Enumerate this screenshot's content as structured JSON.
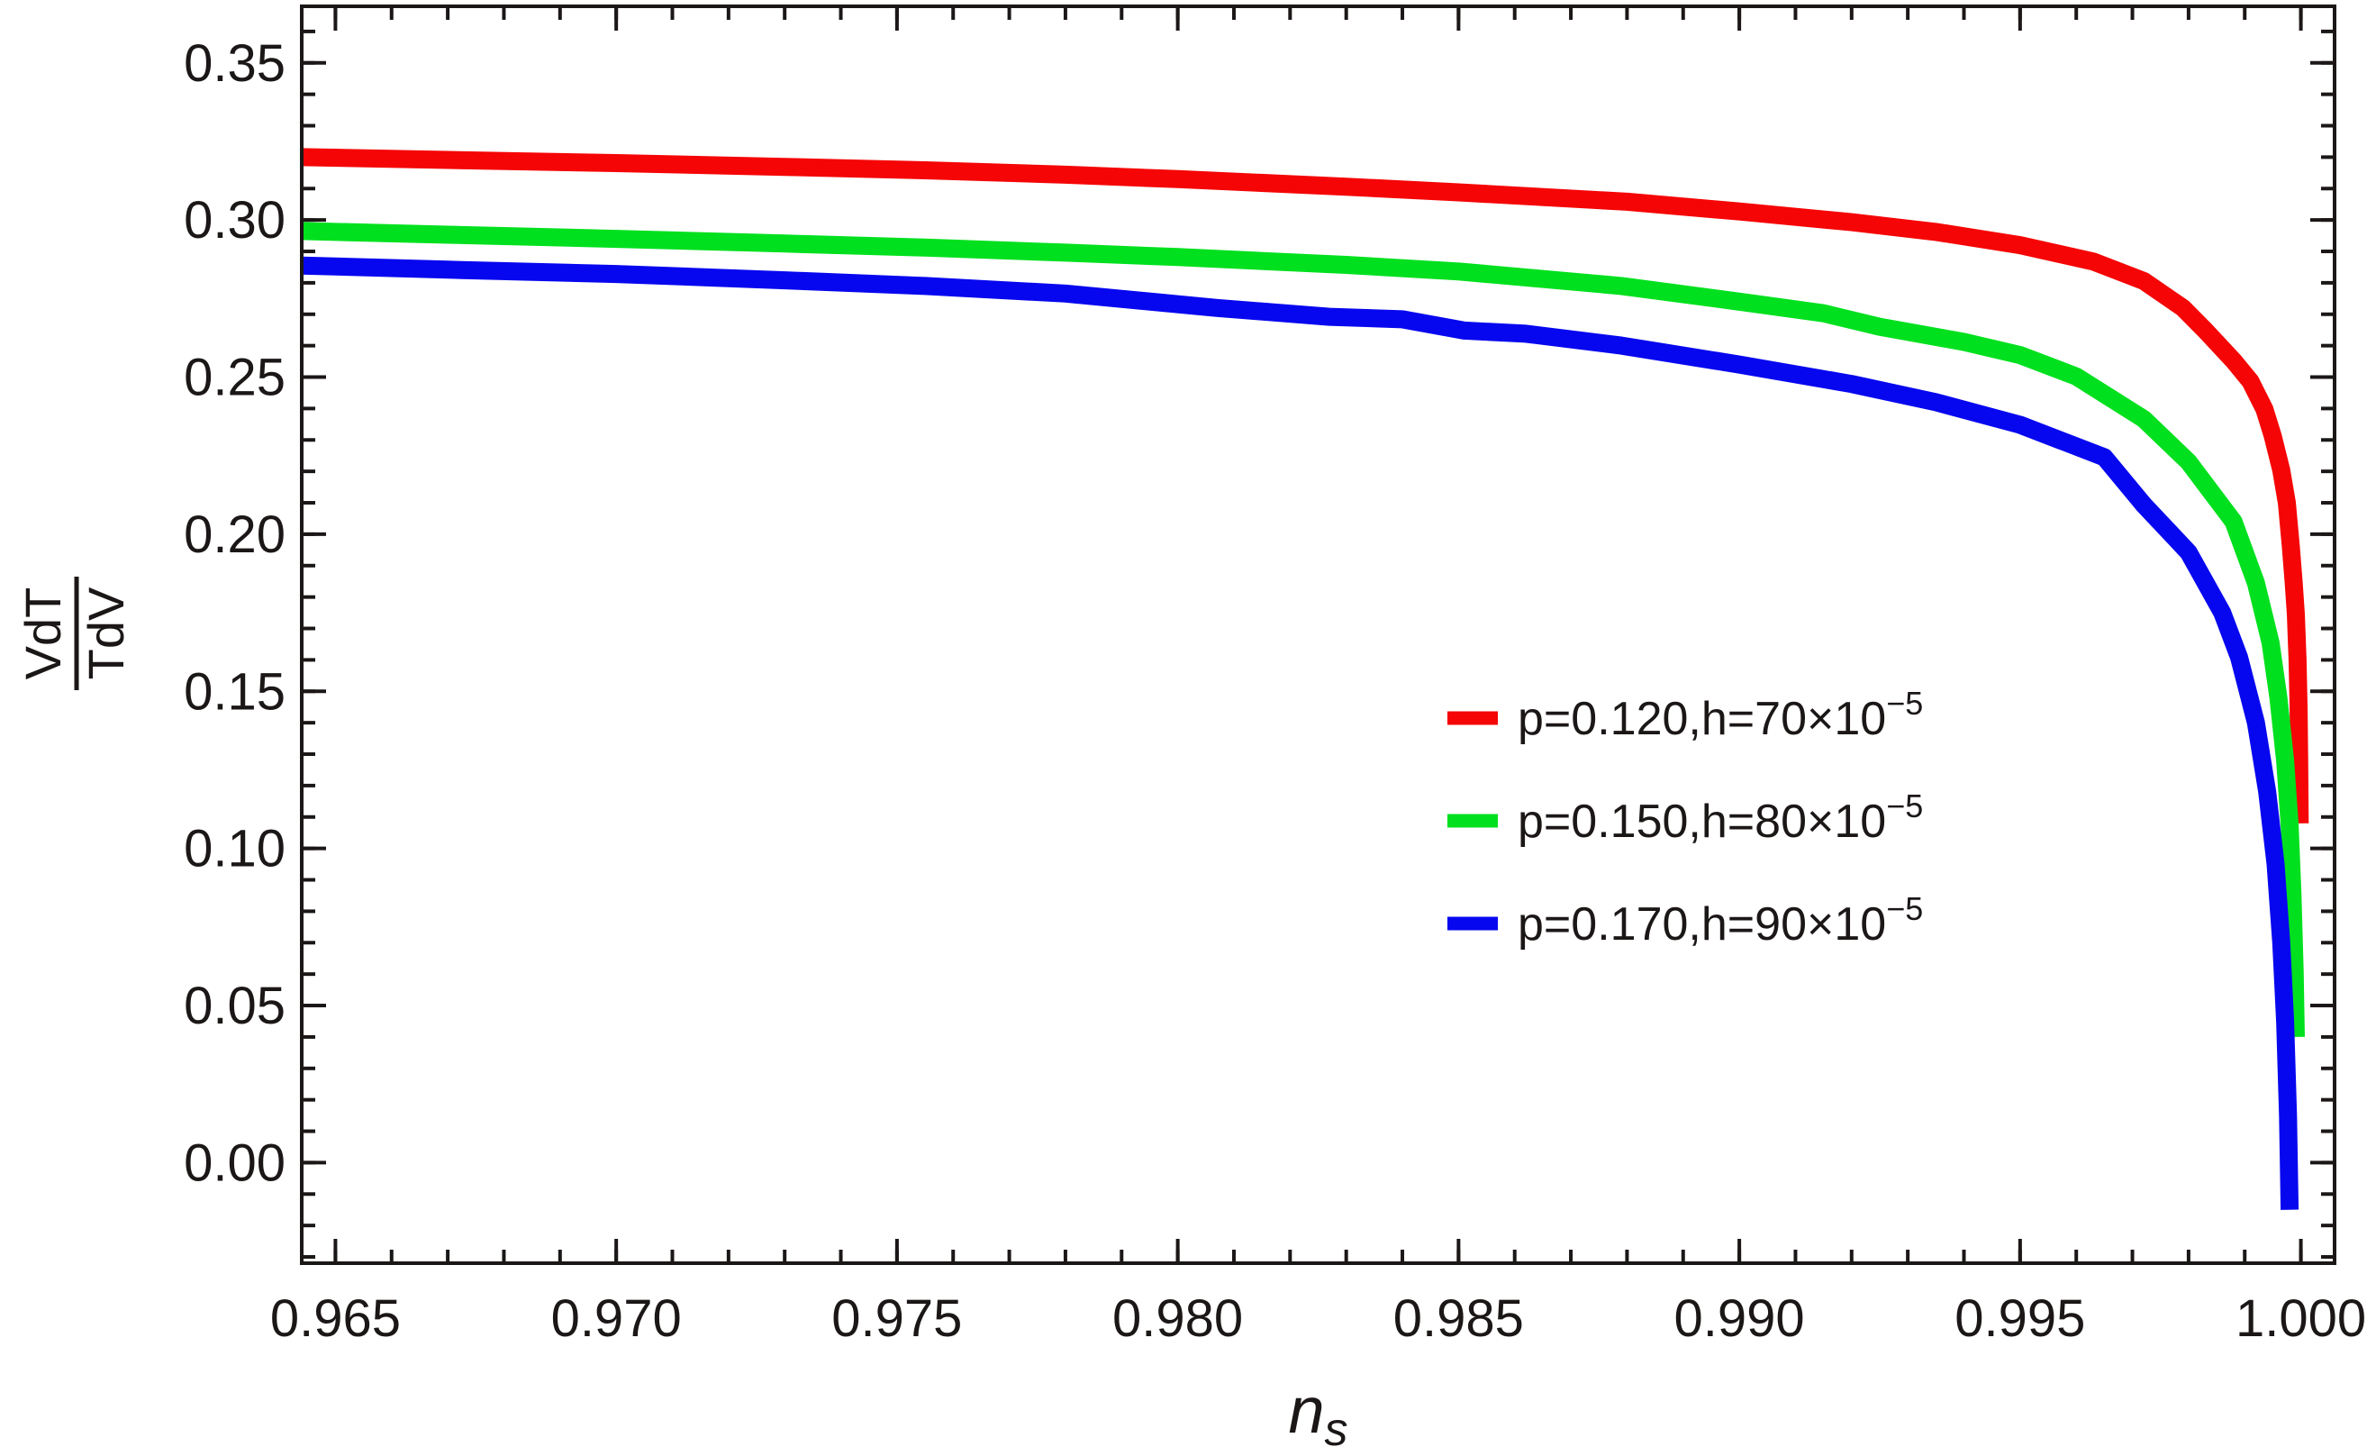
{
  "figure": {
    "background": "#ffffff",
    "text_color": "#1c1717"
  },
  "chart_data": {
    "type": "line",
    "title": "",
    "xlabel": {
      "base": "n",
      "sub": "s"
    },
    "ylabel": {
      "numerator": "VdT",
      "denominator": "TdV"
    },
    "xlim": [
      0.9644,
      1.0006
    ],
    "ylim": [
      -0.032,
      0.368
    ],
    "grid": false,
    "frame": true,
    "axis_color": "#1c1717",
    "x_ticks": {
      "major": [
        0.965,
        0.97,
        0.975,
        0.98,
        0.985,
        0.99,
        0.995,
        1.0
      ],
      "labels": [
        "0.965",
        "0.970",
        "0.975",
        "0.980",
        "0.985",
        "0.990",
        "0.995",
        "1.000"
      ],
      "minor_step": 0.001
    },
    "y_ticks": {
      "major": [
        0.0,
        0.05,
        0.1,
        0.15,
        0.2,
        0.25,
        0.3,
        0.35
      ],
      "labels": [
        "0.00",
        "0.05",
        "0.10",
        "0.15",
        "0.20",
        "0.25",
        "0.30",
        "0.35"
      ],
      "minor_step": 0.01
    },
    "legend": {
      "position": "inside-right-middle",
      "items": [
        {
          "name": "p=0.120,h=70×10⁻⁵",
          "label_base": "p=0.120,h=70×10",
          "label_sup": "−5",
          "color": "#f50505"
        },
        {
          "name": "p=0.150,h=80×10⁻⁵",
          "label_base": "p=0.150,h=80×10",
          "label_sup": "−5",
          "color": "#00e01e"
        },
        {
          "name": "p=0.170,h=90×10⁻⁵",
          "label_base": "p=0.170,h=90×10",
          "label_sup": "−5",
          "color": "#0707ef"
        }
      ]
    },
    "series": [
      {
        "name": "p=0.120,h=70×10⁻⁵",
        "color": "#f50505",
        "points": [
          [
            0.9644,
            0.32
          ],
          [
            0.967,
            0.3191
          ],
          [
            0.97,
            0.3181
          ],
          [
            0.973,
            0.3169
          ],
          [
            0.9755,
            0.3158
          ],
          [
            0.978,
            0.3144
          ],
          [
            0.98,
            0.313
          ],
          [
            0.983,
            0.3106
          ],
          [
            0.985,
            0.3088
          ],
          [
            0.988,
            0.3058
          ],
          [
            0.99,
            0.3027
          ],
          [
            0.992,
            0.2993
          ],
          [
            0.9935,
            0.2962
          ],
          [
            0.995,
            0.292
          ],
          [
            0.9963,
            0.2868
          ],
          [
            0.9972,
            0.2806
          ],
          [
            0.9979,
            0.272
          ],
          [
            0.9983,
            0.2648
          ],
          [
            0.9988,
            0.2552
          ],
          [
            0.9991,
            0.2487
          ],
          [
            0.99935,
            0.2398
          ],
          [
            0.9995,
            0.2312
          ],
          [
            0.99965,
            0.2204
          ],
          [
            0.99975,
            0.21
          ],
          [
            0.99982,
            0.1962
          ],
          [
            0.99987,
            0.185
          ],
          [
            0.99991,
            0.1746
          ],
          [
            0.99994,
            0.16
          ],
          [
            0.99996,
            0.1442
          ],
          [
            0.99997,
            0.1285
          ],
          [
            0.99998,
            0.108
          ]
        ]
      },
      {
        "name": "p=0.150,h=80×10⁻⁵",
        "color": "#00e01e",
        "points": [
          [
            0.9644,
            0.2965
          ],
          [
            0.967,
            0.2953
          ],
          [
            0.97,
            0.294
          ],
          [
            0.973,
            0.2925
          ],
          [
            0.9755,
            0.2912
          ],
          [
            0.978,
            0.2896
          ],
          [
            0.98,
            0.2882
          ],
          [
            0.983,
            0.2857
          ],
          [
            0.985,
            0.2836
          ],
          [
            0.9879,
            0.279
          ],
          [
            0.99,
            0.274
          ],
          [
            0.9915,
            0.2703
          ],
          [
            0.9925,
            0.266
          ],
          [
            0.994,
            0.2612
          ],
          [
            0.995,
            0.257
          ],
          [
            0.996,
            0.2502
          ],
          [
            0.9972,
            0.2367
          ],
          [
            0.998,
            0.223
          ],
          [
            0.9988,
            0.204
          ],
          [
            0.9992,
            0.1845
          ],
          [
            0.99946,
            0.1655
          ],
          [
            0.9996,
            0.1478
          ],
          [
            0.99972,
            0.128
          ],
          [
            0.9998,
            0.1075
          ],
          [
            0.99985,
            0.086
          ],
          [
            0.99989,
            0.061
          ],
          [
            0.99991,
            0.04
          ]
        ]
      },
      {
        "name": "p=0.170,h=90×10⁻⁵",
        "color": "#0707ef",
        "points": [
          [
            0.9644,
            0.2855
          ],
          [
            0.967,
            0.2842
          ],
          [
            0.97,
            0.2828
          ],
          [
            0.973,
            0.2808
          ],
          [
            0.9755,
            0.279
          ],
          [
            0.978,
            0.2766
          ],
          [
            0.9807,
            0.272
          ],
          [
            0.9827,
            0.2692
          ],
          [
            0.984,
            0.2684
          ],
          [
            0.9851,
            0.2648
          ],
          [
            0.9862,
            0.2638
          ],
          [
            0.9879,
            0.26
          ],
          [
            0.99,
            0.254
          ],
          [
            0.992,
            0.2478
          ],
          [
            0.9935,
            0.242
          ],
          [
            0.995,
            0.2348
          ],
          [
            0.9965,
            0.2245
          ],
          [
            0.9972,
            0.2094
          ],
          [
            0.998,
            0.1942
          ],
          [
            0.9986,
            0.175
          ],
          [
            0.9989,
            0.1608
          ],
          [
            0.9992,
            0.14
          ],
          [
            0.9994,
            0.118
          ],
          [
            0.99955,
            0.095
          ],
          [
            0.99965,
            0.07
          ],
          [
            0.99972,
            0.045
          ],
          [
            0.99977,
            0.015
          ],
          [
            0.9998,
            -0.015
          ]
        ]
      }
    ]
  }
}
